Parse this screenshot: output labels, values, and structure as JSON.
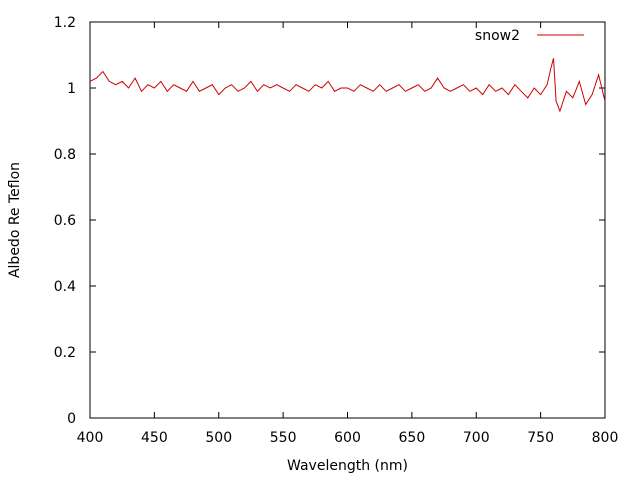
{
  "chart_data": {
    "type": "line",
    "title": "",
    "xlabel": "Wavelength (nm)",
    "ylabel": "Albedo Re Teflon",
    "xlim": [
      400,
      800
    ],
    "ylim": [
      0,
      1.2
    ],
    "x_ticks": [
      400,
      450,
      500,
      550,
      600,
      650,
      700,
      750,
      800
    ],
    "y_ticks": [
      0,
      0.2,
      0.4,
      0.6,
      0.8,
      1,
      1.2
    ],
    "x_tick_labels": [
      "400",
      "450",
      "500",
      "550",
      "600",
      "650",
      "700",
      "750",
      "800"
    ],
    "y_tick_labels": [
      "0",
      "0.2",
      "0.4",
      "0.6",
      "0.8",
      "1",
      "1.2"
    ],
    "grid": false,
    "legend_position": "top-right",
    "series": [
      {
        "name": "snow2",
        "color": "#cc0000",
        "x": [
          400,
          405,
          410,
          415,
          420,
          425,
          430,
          435,
          440,
          445,
          450,
          455,
          460,
          465,
          470,
          475,
          480,
          485,
          490,
          495,
          500,
          505,
          510,
          515,
          520,
          525,
          530,
          535,
          540,
          545,
          550,
          555,
          560,
          565,
          570,
          575,
          580,
          585,
          590,
          595,
          600,
          605,
          610,
          615,
          620,
          625,
          630,
          635,
          640,
          645,
          650,
          655,
          660,
          665,
          670,
          675,
          680,
          685,
          690,
          695,
          700,
          705,
          710,
          715,
          720,
          725,
          730,
          735,
          740,
          745,
          750,
          755,
          758,
          760,
          762,
          765,
          770,
          775,
          780,
          785,
          790,
          795,
          800
        ],
        "y": [
          1.02,
          1.03,
          1.05,
          1.02,
          1.01,
          1.02,
          1.0,
          1.03,
          0.99,
          1.01,
          1.0,
          1.02,
          0.99,
          1.01,
          1.0,
          0.99,
          1.02,
          0.99,
          1.0,
          1.01,
          0.98,
          1.0,
          1.01,
          0.99,
          1.0,
          1.02,
          0.99,
          1.01,
          1.0,
          1.01,
          1.0,
          0.99,
          1.01,
          1.0,
          0.99,
          1.01,
          1.0,
          1.02,
          0.99,
          1.0,
          1.0,
          0.99,
          1.01,
          1.0,
          0.99,
          1.01,
          0.99,
          1.0,
          1.01,
          0.99,
          1.0,
          1.01,
          0.99,
          1.0,
          1.03,
          1.0,
          0.99,
          1.0,
          1.01,
          0.99,
          1.0,
          0.98,
          1.01,
          0.99,
          1.0,
          0.98,
          1.01,
          0.99,
          0.97,
          1.0,
          0.98,
          1.01,
          1.06,
          1.09,
          0.96,
          0.93,
          0.99,
          0.97,
          1.02,
          0.95,
          0.98,
          1.04,
          0.96
        ]
      }
    ]
  }
}
